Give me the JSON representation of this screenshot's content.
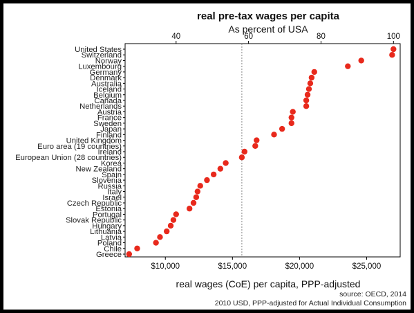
{
  "chart_data": {
    "type": "scatter",
    "title": "real pre-tax wages per capita",
    "subtitle": "As percent of USA",
    "xlabel": "real wages (CoE) per capita, PPP-adjusted",
    "top_axis_ticks": [
      40,
      60,
      80,
      100
    ],
    "bottom_axis_ticks": [
      "$10,000",
      "$15,000",
      "$20,000",
      "$25,000"
    ],
    "bottom_tick_values": [
      10000,
      15000,
      20000,
      25000
    ],
    "xlim": [
      7000,
      27500
    ],
    "reference_line": 15700,
    "categories": [
      "United States",
      "Switzerland",
      "Norway",
      "Luxembourg",
      "Germany",
      "Denmark",
      "Australia",
      "Iceland",
      "Belgium",
      "Canada",
      "Netherlands",
      "Austria",
      "France",
      "Sweden",
      "Japan",
      "Finland",
      "United Kingdom",
      "Euro area (19 countries)",
      "Ireland",
      "European Union (28 countries)",
      "Korea",
      "New Zealand",
      "Spain",
      "Slovenia",
      "Russia",
      "Italy",
      "Israel",
      "Czech Republic",
      "Estonia",
      "Portugal",
      "Slovak Republic",
      "Hungary",
      "Lithuania",
      "Latvia",
      "Poland",
      "Chile",
      "Greece"
    ],
    "values": [
      27000,
      26900,
      24600,
      23600,
      21100,
      20900,
      20800,
      20700,
      20600,
      20500,
      20500,
      19500,
      19400,
      19400,
      18700,
      18100,
      16800,
      16700,
      15900,
      15700,
      14500,
      14100,
      13600,
      13100,
      12600,
      12400,
      12300,
      12100,
      11800,
      10800,
      10600,
      10400,
      10100,
      9600,
      9300,
      7900,
      7300
    ],
    "point_color": "#e8291c",
    "notes": [
      "source: OECD, 2014",
      "2010 USD, PPP-adjusted for Actual Individual Consumption"
    ]
  }
}
